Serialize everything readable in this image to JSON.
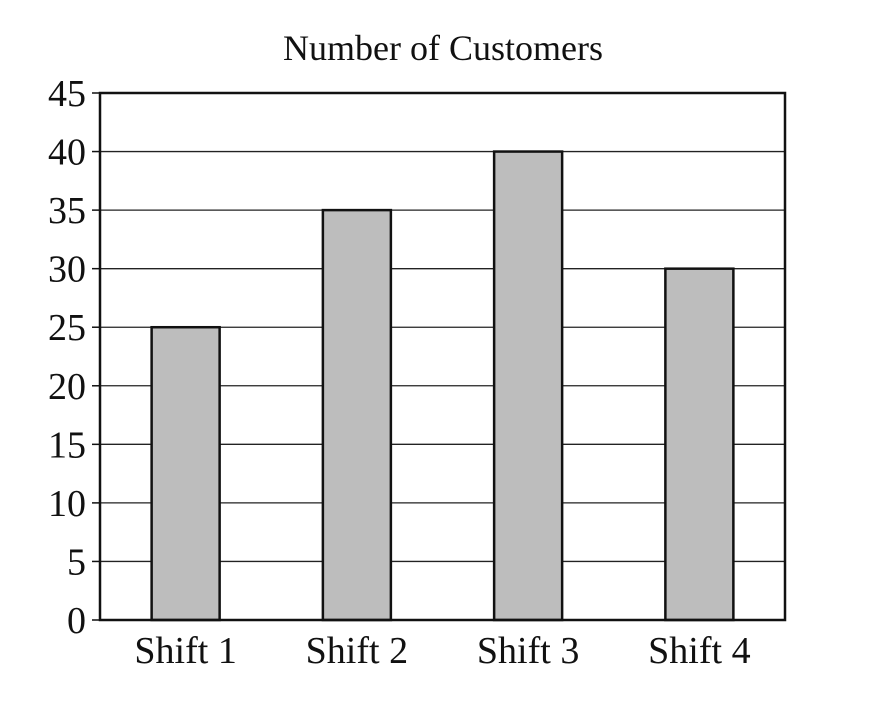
{
  "chart_data": {
    "type": "bar",
    "title": "Number of Customers",
    "xlabel": "",
    "ylabel": "",
    "categories": [
      "Shift 1",
      "Shift 2",
      "Shift 3",
      "Shift 4"
    ],
    "values": [
      25,
      35,
      40,
      30
    ],
    "ylim": [
      0,
      45
    ],
    "yticks": [
      "0",
      "5",
      "10",
      "15",
      "20",
      "25",
      "30",
      "35",
      "40",
      "45"
    ],
    "grid": true,
    "legend": "none",
    "colors": {
      "bar_fill": "#bdbdbd",
      "bar_edge": "#111111",
      "grid": "#222222",
      "axis": "#111111"
    }
  }
}
